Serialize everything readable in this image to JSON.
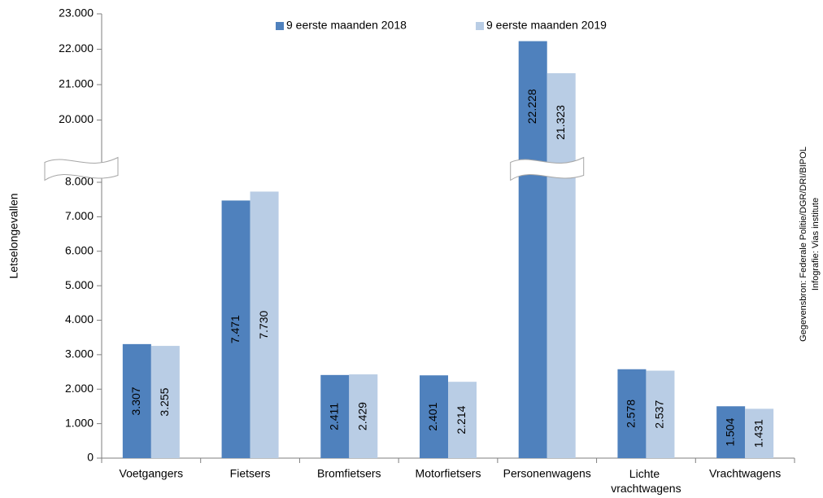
{
  "chart_data": {
    "type": "bar",
    "y_label": "Letselongevallen",
    "source": "Gegevensbron: Federale Politie/DGR/DRI/BIPOL",
    "credit": "Infografie: Vias institute",
    "categories": [
      "Voetgangers",
      "Fietsers",
      "Bromfietsers",
      "Motorfietsers",
      "Personenwagens",
      "Lichte vrachtwagens",
      "Vrachtwagens"
    ],
    "series": [
      {
        "name": "9 eerste maanden 2018",
        "color": "#4f81bd",
        "values": [
          3307,
          7471,
          2411,
          2401,
          22228,
          2578,
          1504
        ],
        "value_labels": [
          "3.307",
          "7.471",
          "2.411",
          "2.401",
          "22.228",
          "2.578",
          "1.504"
        ]
      },
      {
        "name": "9 eerste maanden 2019",
        "color": "#b9cde5",
        "values": [
          3255,
          7730,
          2429,
          2214,
          21323,
          2537,
          1431
        ],
        "value_labels": [
          "3.255",
          "7.730",
          "2.429",
          "2.214",
          "21.323",
          "2.537",
          "1.431"
        ]
      }
    ],
    "ylim": [
      0,
      23000
    ],
    "axis_break": [
      8000,
      19000
    ],
    "yticks": [
      {
        "value": 0,
        "label": "0"
      },
      {
        "value": 1000,
        "label": "1.000"
      },
      {
        "value": 2000,
        "label": "2.000"
      },
      {
        "value": 3000,
        "label": "3.000"
      },
      {
        "value": 4000,
        "label": "4.000"
      },
      {
        "value": 5000,
        "label": "5.000"
      },
      {
        "value": 6000,
        "label": "6.000"
      },
      {
        "value": 7000,
        "label": "7.000"
      },
      {
        "value": 8000,
        "label": "8.000"
      },
      {
        "value": 20000,
        "label": "20.000"
      },
      {
        "value": 21000,
        "label": "21.000"
      },
      {
        "value": 22000,
        "label": "22.000"
      },
      {
        "value": 23000,
        "label": "23.000"
      }
    ],
    "legend": "top"
  }
}
